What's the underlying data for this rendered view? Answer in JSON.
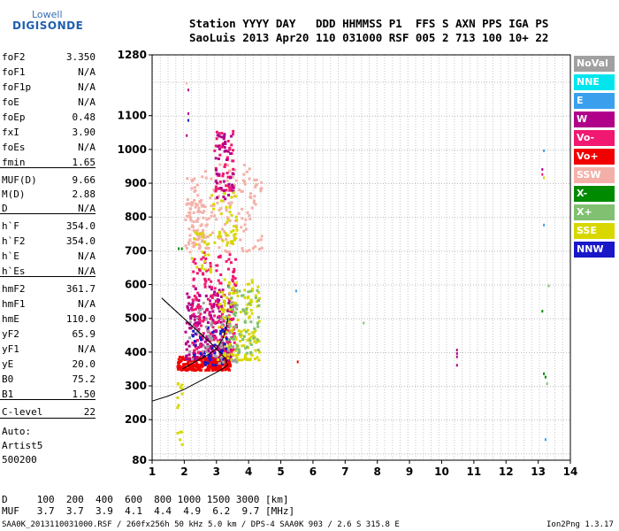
{
  "logo": {
    "line1": "Lowell",
    "line2": "DIGISONDE"
  },
  "header": {
    "row1": "Station YYYY DAY   DDD HHMMSS P1  FFS S AXN PPS IGA PS",
    "row2": "SaoLuis 2013 Apr20 110 031000 RSF 005 2 713 100 10+ 22"
  },
  "params": [
    {
      "name": "foF2",
      "value": "3.350"
    },
    {
      "name": "foF1",
      "value": "N/A"
    },
    {
      "name": "foF1p",
      "value": "N/A"
    },
    {
      "name": "foE",
      "value": "N/A"
    },
    {
      "name": "foEp",
      "value": "0.48"
    },
    {
      "name": "fxI",
      "value": "3.90"
    },
    {
      "name": "foEs",
      "value": "N/A"
    },
    {
      "name": "fmin",
      "value": "1.65"
    },
    {
      "name": "MUF(D)",
      "value": "9.66"
    },
    {
      "name": "M(D)",
      "value": "2.88"
    },
    {
      "name": "D",
      "value": "N/A"
    },
    {
      "name": "h`F",
      "value": "354.0"
    },
    {
      "name": "h`F2",
      "value": "354.0"
    },
    {
      "name": "h`E",
      "value": "N/A"
    },
    {
      "name": "h`Es",
      "value": "N/A"
    },
    {
      "name": "hmF2",
      "value": "361.7"
    },
    {
      "name": "hmF1",
      "value": "N/A"
    },
    {
      "name": "hmE",
      "value": "110.0"
    },
    {
      "name": "yF2",
      "value": "65.9"
    },
    {
      "name": "yF1",
      "value": "N/A"
    },
    {
      "name": "yE",
      "value": "20.0"
    },
    {
      "name": "B0",
      "value": "75.2"
    },
    {
      "name": "B1",
      "value": "1.50"
    },
    {
      "name": "C-level",
      "value": "22"
    }
  ],
  "autoscale": {
    "line1": "Auto:",
    "line2": "Artist5",
    "line3": "500200"
  },
  "legend": [
    {
      "label": "NoVal",
      "color": "#a0a0a0"
    },
    {
      "label": "NNE",
      "color": "#00e5ee"
    },
    {
      "label": "E",
      "color": "#3aa0ee"
    },
    {
      "label": "W",
      "color": "#b0008a"
    },
    {
      "label": "Vo-",
      "color": "#f01870"
    },
    {
      "label": "Vo+",
      "color": "#f00000"
    },
    {
      "label": "SSW",
      "color": "#f4b0a8"
    },
    {
      "label": "X-",
      "color": "#008a00"
    },
    {
      "label": "X+",
      "color": "#80c070"
    },
    {
      "label": "SSE",
      "color": "#d8d800"
    },
    {
      "label": "NNW",
      "color": "#1818c8"
    }
  ],
  "muf_table": {
    "row1": "D     100  200  400  600  800 1000 1500 3000 [km]",
    "row2": "MUF   3.7  3.7  3.9  4.1  4.4  4.9  6.2  9.7 [MHz]"
  },
  "footer": {
    "left": "SAA0K_2013110031000.RSF / 260fx256h 50 kHz 5.0 km / DPS-4 SAA0K 903 / 2.6 S 315.8 E",
    "right": "Ion2Png 1.3.17"
  },
  "chart_data": {
    "type": "scatter",
    "title": "",
    "xlabel": "",
    "ylabel": "",
    "xlim": [
      1,
      14
    ],
    "ylim": [
      80,
      1280
    ],
    "x_ticks": [
      1,
      2,
      3,
      4,
      5,
      6,
      7,
      8,
      9,
      10,
      11,
      12,
      13,
      14
    ],
    "y_ticks": [
      80,
      200,
      300,
      400,
      500,
      600,
      700,
      800,
      900,
      1000,
      1100,
      1280
    ],
    "grid": true,
    "profile_curve": [
      [
        1.0,
        255
      ],
      [
        1.5,
        270
      ],
      [
        2.0,
        290
      ],
      [
        2.5,
        315
      ],
      [
        2.9,
        335
      ],
      [
        3.15,
        348
      ],
      [
        3.35,
        362
      ],
      [
        3.3,
        378
      ],
      [
        3.15,
        395
      ],
      [
        2.9,
        420
      ],
      [
        2.5,
        455
      ],
      [
        2.1,
        490
      ],
      [
        1.7,
        525
      ],
      [
        1.3,
        560
      ]
    ],
    "trace_curve": [
      [
        1.95,
        350
      ],
      [
        2.3,
        370
      ],
      [
        2.7,
        390
      ],
      [
        3.0,
        410
      ],
      [
        3.2,
        440
      ],
      [
        3.3,
        470
      ],
      [
        3.35,
        500
      ]
    ],
    "clusters": [
      {
        "color": "#f00000",
        "xmin": 1.75,
        "xmax": 3.4,
        "ymin": 350,
        "ymax": 390,
        "n": 260
      },
      {
        "color": "#b0008a",
        "xmin": 2.0,
        "xmax": 3.5,
        "ymin": 380,
        "ymax": 600,
        "n": 220
      },
      {
        "color": "#f01870",
        "xmin": 2.2,
        "xmax": 3.6,
        "ymin": 400,
        "ymax": 700,
        "n": 200
      },
      {
        "color": "#d8d800",
        "xmin": 3.0,
        "xmax": 4.3,
        "ymin": 380,
        "ymax": 620,
        "n": 160
      },
      {
        "color": "#80c070",
        "xmin": 3.3,
        "xmax": 4.3,
        "ymin": 400,
        "ymax": 600,
        "n": 60
      },
      {
        "color": "#f4b0a8",
        "xmin": 2.0,
        "xmax": 4.4,
        "ymin": 700,
        "ymax": 960,
        "n": 170
      },
      {
        "color": "#f4b0a8",
        "xmin": 2.1,
        "xmax": 2.6,
        "ymin": 720,
        "ymax": 850,
        "n": 50
      },
      {
        "color": "#f01870",
        "xmin": 2.9,
        "xmax": 3.5,
        "ymin": 880,
        "ymax": 1060,
        "n": 55
      },
      {
        "color": "#b0008a",
        "xmin": 2.9,
        "xmax": 3.5,
        "ymin": 850,
        "ymax": 1050,
        "n": 40
      },
      {
        "color": "#d8d800",
        "xmin": 2.8,
        "xmax": 3.6,
        "ymin": 720,
        "ymax": 900,
        "n": 40
      },
      {
        "color": "#1818c8",
        "xmin": 2.2,
        "xmax": 3.3,
        "ymin": 360,
        "ymax": 480,
        "n": 40
      },
      {
        "color": "#a0a0a0",
        "xmin": 2.1,
        "xmax": 3.6,
        "ymin": 370,
        "ymax": 560,
        "n": 50
      },
      {
        "color": "#d8d800",
        "xmin": 1.75,
        "xmax": 1.9,
        "ymin": 130,
        "ymax": 330,
        "n": 14
      },
      {
        "color": "#d8d800",
        "xmin": 2.2,
        "xmax": 2.8,
        "ymin": 640,
        "ymax": 760,
        "n": 25
      }
    ],
    "isolated_points": [
      {
        "x": 2.05,
        "y": 1200,
        "color": "#f4b0a8"
      },
      {
        "x": 2.1,
        "y": 1180,
        "color": "#b0008a"
      },
      {
        "x": 2.1,
        "y": 1110,
        "color": "#b0008a"
      },
      {
        "x": 2.1,
        "y": 1090,
        "color": "#1818c8"
      },
      {
        "x": 2.05,
        "y": 1045,
        "color": "#b0008a"
      },
      {
        "x": 1.9,
        "y": 710,
        "color": "#008a00"
      },
      {
        "x": 1.8,
        "y": 710,
        "color": "#008a00"
      },
      {
        "x": 5.45,
        "y": 585,
        "color": "#3aa0ee"
      },
      {
        "x": 5.5,
        "y": 375,
        "color": "#f00000"
      },
      {
        "x": 7.55,
        "y": 490,
        "color": "#80c070"
      },
      {
        "x": 10.45,
        "y": 410,
        "color": "#b0008a"
      },
      {
        "x": 10.45,
        "y": 400,
        "color": "#b0008a"
      },
      {
        "x": 10.45,
        "y": 390,
        "color": "#b0008a"
      },
      {
        "x": 10.45,
        "y": 365,
        "color": "#b0008a"
      },
      {
        "x": 13.15,
        "y": 1000,
        "color": "#3aa0ee"
      },
      {
        "x": 13.1,
        "y": 945,
        "color": "#b0008a"
      },
      {
        "x": 13.1,
        "y": 930,
        "color": "#f01870"
      },
      {
        "x": 13.15,
        "y": 920,
        "color": "#d8d800"
      },
      {
        "x": 13.15,
        "y": 780,
        "color": "#3aa0ee"
      },
      {
        "x": 13.3,
        "y": 600,
        "color": "#80c070"
      },
      {
        "x": 13.1,
        "y": 525,
        "color": "#008a00"
      },
      {
        "x": 13.15,
        "y": 340,
        "color": "#008a00"
      },
      {
        "x": 13.2,
        "y": 330,
        "color": "#008a00"
      },
      {
        "x": 13.25,
        "y": 310,
        "color": "#80c070"
      },
      {
        "x": 13.2,
        "y": 145,
        "color": "#3aa0ee"
      }
    ]
  }
}
